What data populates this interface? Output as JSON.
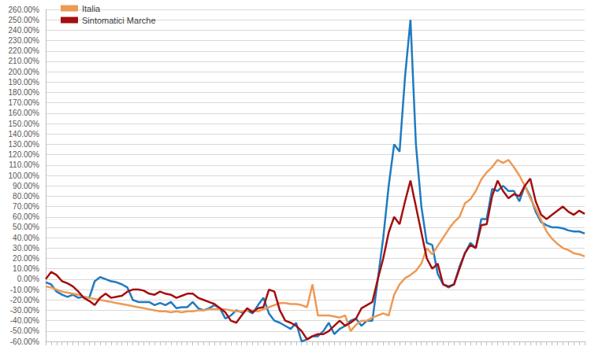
{
  "chart_data": {
    "type": "line",
    "categories": [
      null,
      null,
      null,
      null,
      null,
      null,
      null,
      null,
      null,
      null,
      null,
      null,
      null,
      null,
      null,
      null,
      null,
      null,
      null,
      null,
      null,
      null,
      null,
      null,
      null,
      null,
      null,
      null,
      null,
      null,
      null,
      null,
      null,
      null,
      null,
      null,
      null,
      null,
      null,
      null,
      null,
      null,
      null,
      null,
      null,
      null,
      null,
      null,
      null,
      null,
      null,
      null,
      null,
      null,
      null,
      null,
      null,
      null,
      null,
      null,
      null,
      null,
      null,
      null,
      null,
      null,
      null,
      null,
      null,
      null,
      null,
      null,
      null,
      null,
      null,
      null,
      null,
      null,
      null,
      null,
      null,
      null,
      null,
      null,
      null,
      null,
      null,
      null,
      null,
      null,
      null,
      null,
      null,
      null,
      null,
      null,
      null,
      null,
      null,
      null
    ],
    "series": [
      {
        "color": "#1f7bc1",
        "values": [
          -3,
          -5,
          -12,
          -15,
          -17,
          -15,
          -18,
          -17,
          -18,
          -2,
          2,
          0,
          -2,
          -3,
          -5,
          -8,
          -20,
          -22,
          -22,
          -22,
          -25,
          -23,
          -25,
          -22,
          -28,
          -27,
          -27,
          -22,
          -28,
          -30,
          -28,
          -25,
          -28,
          -38,
          -35,
          -30,
          -32,
          -30,
          -33,
          -25,
          -18,
          -33,
          -40,
          -42,
          -45,
          -48,
          -42,
          -60,
          -58,
          -55,
          -55,
          -50,
          -42,
          -53,
          -48,
          -45,
          -40,
          -38,
          -45,
          -40,
          -40,
          0,
          40,
          90,
          130,
          123,
          195,
          250,
          130,
          70,
          35,
          33,
          5,
          -5,
          -8,
          -5,
          12,
          25,
          35,
          30,
          58,
          58,
          87,
          85,
          90,
          85,
          85,
          75,
          90,
          80,
          65,
          55,
          52,
          50,
          50,
          49,
          47,
          46,
          46,
          44
        ]
      },
      {
        "name": "Italia",
        "color": "#ed9a55",
        "values": [
          -7,
          -8,
          -10,
          -12,
          -13,
          -14,
          -15,
          -17,
          -18,
          -19,
          -20,
          -21,
          -22,
          -23,
          -24,
          -25,
          -26,
          -27,
          -28,
          -29,
          -30,
          -31,
          -31,
          -32,
          -31,
          -32,
          -31,
          -31,
          -30,
          -30,
          -29,
          -29,
          -29,
          -29,
          -30,
          -31,
          -31,
          -30,
          -30,
          -31,
          -29,
          -27,
          -25,
          -23,
          -23,
          -24,
          -24,
          -25,
          -27,
          -5,
          -35,
          -35,
          -35,
          -36,
          -37,
          -35,
          -50,
          -44,
          -40,
          -40,
          -37,
          -35,
          -33,
          -35,
          -15,
          -5,
          1,
          4,
          8,
          15,
          30,
          24,
          32,
          40,
          48,
          55,
          60,
          73,
          77,
          85,
          96,
          103,
          108,
          115,
          112,
          115,
          108,
          100,
          90,
          78,
          68,
          57,
          46,
          39,
          34,
          30,
          28,
          25,
          24,
          22
        ]
      },
      {
        "name": "Sintomatici Marche",
        "color": "#a50f0f",
        "values": [
          0,
          7,
          4,
          -2,
          -4,
          -7,
          -12,
          -18,
          -21,
          -25,
          -18,
          -14,
          -18,
          -17,
          -16,
          -12,
          -10,
          -10,
          -11,
          -14,
          -15,
          -12,
          -14,
          -15,
          -18,
          -16,
          -14,
          -14,
          -18,
          -20,
          -22,
          -24,
          -28,
          -32,
          -40,
          -42,
          -35,
          -28,
          -32,
          -28,
          -27,
          -10,
          -12,
          -30,
          -40,
          -42,
          -45,
          -50,
          -58,
          -55,
          -53,
          -53,
          -50,
          -45,
          -40,
          -45,
          -42,
          -38,
          -28,
          -25,
          -22,
          0,
          20,
          45,
          60,
          53,
          75,
          95,
          70,
          45,
          20,
          10,
          15,
          -5,
          -7,
          -5,
          10,
          25,
          33,
          30,
          52,
          53,
          80,
          95,
          85,
          78,
          82,
          80,
          90,
          97,
          75,
          62,
          58,
          62,
          66,
          70,
          65,
          62,
          66,
          63
        ]
      }
    ],
    "ylim": [
      -60,
      260
    ],
    "yticks": [
      {
        "value": -60,
        "label": "-60.00%"
      },
      {
        "value": -50,
        "label": "-50.00%"
      },
      {
        "value": -40,
        "label": "-40.00%"
      },
      {
        "value": -30,
        "label": "-30.00%"
      },
      {
        "value": -20,
        "label": "-20.00%"
      },
      {
        "value": -10,
        "label": "-10.00%"
      },
      {
        "value": 0,
        "label": "0.00%"
      },
      {
        "value": 10,
        "label": "10.00%"
      },
      {
        "value": 20,
        "label": "20.00%"
      },
      {
        "value": 30,
        "label": "30.00%"
      },
      {
        "value": 40,
        "label": "40.00%"
      },
      {
        "value": 50,
        "label": "50.00%"
      },
      {
        "value": 60,
        "label": "60.00%"
      },
      {
        "value": 70,
        "label": "70.00%"
      },
      {
        "value": 80,
        "label": "80.00%"
      },
      {
        "value": 90,
        "label": "90.00%"
      },
      {
        "value": 100,
        "label": "100.00%"
      },
      {
        "value": 110,
        "label": "110.00%"
      },
      {
        "value": 120,
        "label": "120.00%"
      },
      {
        "value": 130,
        "label": "130.00%"
      },
      {
        "value": 140,
        "label": "140.00%"
      },
      {
        "value": 150,
        "label": "150.00%"
      },
      {
        "value": 160,
        "label": "160.00%"
      },
      {
        "value": 170,
        "label": "170.00%"
      },
      {
        "value": 180,
        "label": "180.00%"
      },
      {
        "value": 190,
        "label": "190.00%"
      },
      {
        "value": 200,
        "label": "200.00%"
      },
      {
        "value": 210,
        "label": "210.00%"
      },
      {
        "value": 220,
        "label": "220.00%"
      },
      {
        "value": 230,
        "label": "230.00%"
      },
      {
        "value": 240,
        "label": "240.00%"
      },
      {
        "value": 250,
        "label": "250.00%"
      },
      {
        "value": 260,
        "label": "260.00%"
      }
    ],
    "grid": true,
    "legend": "top-left",
    "tick_labels": "y"
  }
}
